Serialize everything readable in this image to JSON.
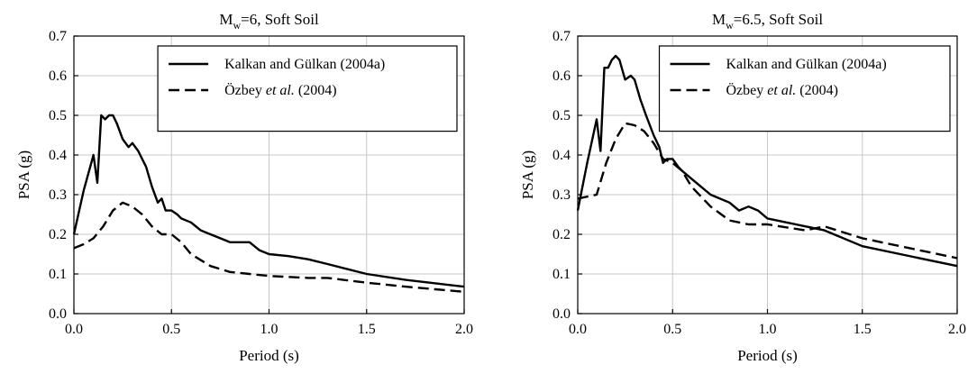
{
  "chart_data": [
    {
      "type": "line",
      "title_parts": [
        "M",
        "w",
        "=6, Soft Soil"
      ],
      "xlabel": "Period (s)",
      "ylabel": "PSA (g)",
      "xlim": [
        0,
        2
      ],
      "ylim": [
        0,
        0.7
      ],
      "xticks": [
        "0.0",
        "0.5",
        "1.0",
        "1.5",
        "2.0"
      ],
      "yticks": [
        "0.0",
        "0.1",
        "0.2",
        "0.3",
        "0.4",
        "0.5",
        "0.6",
        "0.7"
      ],
      "grid": true,
      "legend_position": "top-right",
      "series": [
        {
          "name": "Kalkan and Gülkan (2004a)",
          "style": "solid",
          "x": [
            0,
            0.05,
            0.1,
            0.12,
            0.14,
            0.16,
            0.18,
            0.2,
            0.22,
            0.25,
            0.28,
            0.3,
            0.33,
            0.37,
            0.4,
            0.43,
            0.45,
            0.47,
            0.5,
            0.53,
            0.55,
            0.6,
            0.65,
            0.7,
            0.75,
            0.8,
            0.85,
            0.9,
            0.95,
            1.0,
            1.1,
            1.2,
            1.3,
            1.5,
            1.7,
            2.0
          ],
          "y": [
            0.2,
            0.31,
            0.4,
            0.33,
            0.5,
            0.49,
            0.5,
            0.5,
            0.48,
            0.44,
            0.42,
            0.43,
            0.41,
            0.37,
            0.32,
            0.28,
            0.29,
            0.26,
            0.26,
            0.25,
            0.24,
            0.23,
            0.21,
            0.2,
            0.19,
            0.18,
            0.18,
            0.18,
            0.16,
            0.15,
            0.145,
            0.137,
            0.125,
            0.1,
            0.085,
            0.068
          ]
        },
        {
          "name": "Özbey et al. (2004)",
          "style": "dashed",
          "x": [
            0,
            0.05,
            0.1,
            0.15,
            0.2,
            0.25,
            0.3,
            0.35,
            0.4,
            0.45,
            0.5,
            0.55,
            0.6,
            0.7,
            0.8,
            0.9,
            1.0,
            1.2,
            1.3,
            1.5,
            1.7,
            2.0
          ],
          "y": [
            0.165,
            0.175,
            0.19,
            0.22,
            0.26,
            0.28,
            0.27,
            0.25,
            0.22,
            0.2,
            0.2,
            0.18,
            0.15,
            0.12,
            0.105,
            0.1,
            0.095,
            0.09,
            0.09,
            0.078,
            0.068,
            0.055
          ]
        }
      ]
    },
    {
      "type": "line",
      "title_parts": [
        "M",
        "w",
        "=6.5, Soft Soil"
      ],
      "xlabel": "Period (s)",
      "ylabel": "PSA (g)",
      "xlim": [
        0,
        2
      ],
      "ylim": [
        0,
        0.7
      ],
      "xticks": [
        "0.0",
        "0.5",
        "1.0",
        "1.5",
        "2.0"
      ],
      "yticks": [
        "0.0",
        "0.1",
        "0.2",
        "0.3",
        "0.4",
        "0.5",
        "0.6",
        "0.7"
      ],
      "grid": true,
      "legend_position": "top-right",
      "series": [
        {
          "name": "Kalkan and Gülkan (2004a)",
          "style": "solid",
          "x": [
            0,
            0.05,
            0.1,
            0.12,
            0.14,
            0.16,
            0.18,
            0.2,
            0.22,
            0.25,
            0.28,
            0.3,
            0.33,
            0.36,
            0.4,
            0.43,
            0.45,
            0.47,
            0.5,
            0.53,
            0.55,
            0.6,
            0.65,
            0.7,
            0.8,
            0.85,
            0.9,
            0.95,
            1.0,
            1.1,
            1.2,
            1.3,
            1.5,
            1.7,
            2.0
          ],
          "y": [
            0.26,
            0.38,
            0.49,
            0.41,
            0.62,
            0.62,
            0.64,
            0.65,
            0.64,
            0.59,
            0.6,
            0.59,
            0.54,
            0.5,
            0.45,
            0.42,
            0.38,
            0.39,
            0.39,
            0.37,
            0.36,
            0.34,
            0.32,
            0.3,
            0.28,
            0.26,
            0.27,
            0.26,
            0.24,
            0.23,
            0.22,
            0.21,
            0.17,
            0.15,
            0.12
          ]
        },
        {
          "name": "Özbey et al. (2004)",
          "style": "dashed",
          "x": [
            0,
            0.05,
            0.1,
            0.15,
            0.2,
            0.25,
            0.3,
            0.35,
            0.4,
            0.45,
            0.5,
            0.55,
            0.6,
            0.7,
            0.8,
            0.9,
            1.0,
            1.2,
            1.3,
            1.5,
            1.7,
            2.0
          ],
          "y": [
            0.29,
            0.295,
            0.3,
            0.38,
            0.44,
            0.48,
            0.475,
            0.46,
            0.43,
            0.39,
            0.38,
            0.36,
            0.32,
            0.27,
            0.235,
            0.225,
            0.225,
            0.21,
            0.22,
            0.19,
            0.17,
            0.14
          ]
        }
      ]
    }
  ]
}
